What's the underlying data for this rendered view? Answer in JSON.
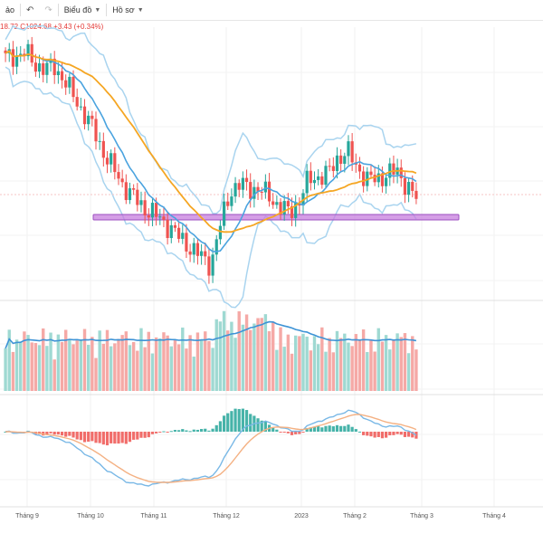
{
  "toolbar": {
    "left_fragment": "ảo",
    "undo_icon": "undo-icon",
    "redo_icon": "redo-icon",
    "chart_menu": "Biểu đồ",
    "profile_menu": "Hồ sơ"
  },
  "ohlc_text": "18.72  C1024.68  +3.43 (+0.34%)",
  "colors": {
    "up": "#26a69a",
    "down": "#ef5350",
    "sma_blue": "#4aa3df",
    "sma_orange": "#f5a623",
    "bollinger": "#a9d4ef",
    "support_zone": "#c77dde",
    "macd_line": "#79b8e6",
    "signal_line": "#f4b183"
  },
  "x_axis_labels": [
    "Tháng 9",
    "Tháng 10",
    "Tháng 11",
    "Tháng 12",
    "2023",
    "Tháng 2",
    "Tháng 3",
    "Tháng 4"
  ],
  "chart_data": {
    "type": "candlestick",
    "title": "",
    "xlabel": "",
    "ylabel": "",
    "x_axis_labels": [
      "Tháng 9",
      "Tháng 10",
      "Tháng 11",
      "Tháng 12",
      "2023",
      "Tháng 2",
      "Tháng 3",
      "Tháng 4"
    ],
    "price_trend": [
      1280,
      1285,
      1290,
      1270,
      1260,
      1265,
      1240,
      1210,
      1180,
      1150,
      1110,
      1080,
      1050,
      1030,
      1010,
      1000,
      985,
      970,
      950,
      935,
      920,
      905,
      980,
      1040,
      1050,
      1045,
      1040,
      1030,
      1010,
      1000,
      1020,
      1060,
      1065,
      1070,
      1100,
      1110,
      1080,
      1060,
      1060,
      1070,
      1075,
      1050,
      1025
    ],
    "last_close": 1024.68,
    "change": 3.43,
    "change_pct": 0.34,
    "indicators": [
      "Bollinger Bands",
      "Moving Average (blue)",
      "Moving Average (orange)",
      "Volume",
      "MACD"
    ]
  }
}
